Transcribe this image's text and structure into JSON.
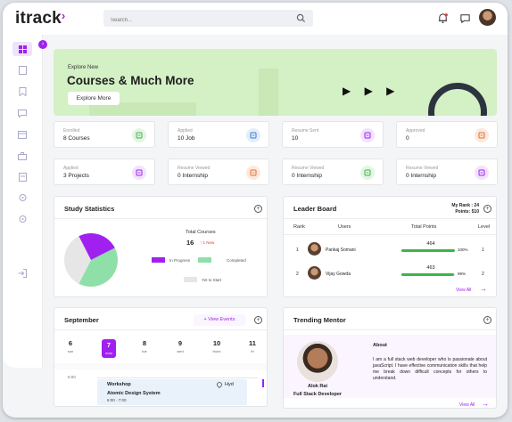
{
  "app": {
    "logo": "itrack",
    "logo_mark": "›"
  },
  "search": {
    "placeholder": "Search..."
  },
  "banner": {
    "small": "Explore New",
    "title": "Courses & Much More",
    "button": "Explore More",
    "plays": "▶ ▶ ▶"
  },
  "stats": [
    {
      "label": "Enrolled",
      "value": "8 Courses",
      "icon": "book-icon",
      "color": "#3cb44a",
      "bg": "#e3f5e3"
    },
    {
      "label": "Applied",
      "value": "10 Job",
      "icon": "graduation-cap-icon",
      "color": "#3a7bd5",
      "bg": "#e3eefb"
    },
    {
      "label": "Resume Sent",
      "value": "10",
      "icon": "document-icon",
      "color": "#a020f0",
      "bg": "#f1e3fb"
    },
    {
      "label": "Approved",
      "value": "0",
      "icon": "document-check-icon",
      "color": "#e07030",
      "bg": "#fbe9df"
    },
    {
      "label": "Applied",
      "value": "3 Projects",
      "icon": "people-icon",
      "color": "#a020f0",
      "bg": "#f1e3fb"
    },
    {
      "label": "Resume Viewed",
      "value": "0 Internship",
      "icon": "people-icon",
      "color": "#e07030",
      "bg": "#fbe9df"
    },
    {
      "label": "Resume Viewed",
      "value": "0 Internship",
      "icon": "people-icon",
      "color": "#3cb44a",
      "bg": "#e3f5e3"
    },
    {
      "label": "Resume Viewed",
      "value": "0 Internship",
      "icon": "people-icon",
      "color": "#a020f0",
      "bg": "#f1e3fb"
    }
  ],
  "study": {
    "title": "Study Statistics",
    "total_label": "Total Courses",
    "total_value": "16",
    "new_badge": "↑ 1 New",
    "legend": [
      "In Progress",
      "Completed",
      "Yet to Start"
    ],
    "colors": [
      "#a020f0",
      "#8fe0a8",
      "#e6e6e6"
    ]
  },
  "chart_data": {
    "type": "pie",
    "labels": [
      "In Progress",
      "Completed",
      "Yet to Start"
    ],
    "values": [
      40,
      35,
      25
    ]
  },
  "leader": {
    "title": "Leader Board",
    "my_rank": "My Rank : 24",
    "points": "Points: 510",
    "headers": [
      "Rank",
      "Users",
      "Total Points",
      "Level"
    ],
    "rows": [
      {
        "rank": "1",
        "name": "Pankaj Somani",
        "points": "464",
        "pct": "100%",
        "fill": 1.0,
        "level": "1"
      },
      {
        "rank": "2",
        "name": "Vijay Gowda",
        "points": "463",
        "pct": "99%",
        "fill": 0.99,
        "level": "2"
      }
    ],
    "view_all": "View All"
  },
  "calendar": {
    "title": "September",
    "view_events": "+ View Events",
    "days": [
      {
        "n": "6",
        "w": "sun"
      },
      {
        "n": "7",
        "w": "mon"
      },
      {
        "n": "8",
        "w": "tue"
      },
      {
        "n": "9",
        "w": "wed"
      },
      {
        "n": "10",
        "w": "thurs"
      },
      {
        "n": "11",
        "w": "fri"
      }
    ],
    "time": "6:00",
    "event": {
      "type": "Workshop",
      "location": "Hyd",
      "name": "Atomic Design System",
      "time": "6:00 - 7:00"
    }
  },
  "mentor": {
    "title": "Trending Mentor",
    "name": "Alok Rai",
    "role": "Full Stack Developer",
    "about_title": "About",
    "about": "I am a full stack web developer who is passionate about javaScript. I have effective communication skills that help me break down difficult concepts for others to understand.",
    "view_all": "View All"
  }
}
